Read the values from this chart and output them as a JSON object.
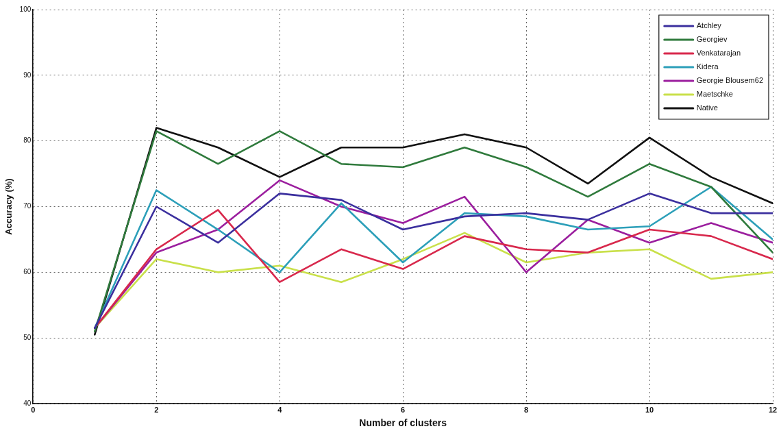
{
  "chart_data": {
    "type": "line",
    "xlabel": "Number of clusters",
    "ylabel": "Accuracy (%)",
    "x": [
      1,
      2,
      3,
      4,
      5,
      6,
      7,
      8,
      9,
      10,
      11,
      12
    ],
    "series": [
      {
        "name": "Atchley",
        "color": "#3b2f9e",
        "values": [
          51.5,
          70,
          64.5,
          72,
          71,
          66.5,
          68.5,
          69,
          68,
          72,
          69,
          69
        ]
      },
      {
        "name": "Georgiev",
        "color": "#2f7a3c",
        "values": [
          51,
          81.5,
          76.5,
          81.5,
          76.5,
          76,
          79,
          76,
          71.5,
          76.5,
          73,
          63
        ]
      },
      {
        "name": "Venkatarajan",
        "color": "#d8284c",
        "values": [
          51.5,
          63.5,
          69.5,
          58.5,
          63.5,
          60.5,
          65.5,
          63.5,
          63,
          66.5,
          65.5,
          62
        ]
      },
      {
        "name": "Kidera",
        "color": "#2c9fb9",
        "values": [
          51.5,
          72.5,
          66.5,
          60,
          70.5,
          61.5,
          69,
          68.5,
          66.5,
          67,
          73,
          65
        ]
      },
      {
        "name": "Georgie Blousem62",
        "color": "#9b1e9e",
        "values": [
          51.5,
          63,
          66.5,
          74,
          70,
          67.5,
          71.5,
          60,
          68,
          64.5,
          67.5,
          64.5
        ]
      },
      {
        "name": "Maetschke",
        "color": "#c9e04a",
        "values": [
          51.5,
          62,
          60,
          61,
          58.5,
          62,
          66,
          61.5,
          63,
          63.5,
          59,
          60
        ]
      },
      {
        "name": "Native",
        "color": "#111111",
        "values": [
          50.5,
          82,
          79,
          74.5,
          79,
          79,
          81,
          79,
          73.5,
          80.5,
          74.5,
          70.5
        ]
      }
    ],
    "xlim": [
      0,
      12
    ],
    "ylim": [
      40,
      100
    ],
    "xticks": [
      0,
      2,
      4,
      6,
      8,
      10,
      12
    ],
    "yticks": [
      40,
      50,
      60,
      70,
      80,
      90,
      100
    ],
    "grid": true,
    "legend": "top right",
    "line_style": "solid"
  }
}
